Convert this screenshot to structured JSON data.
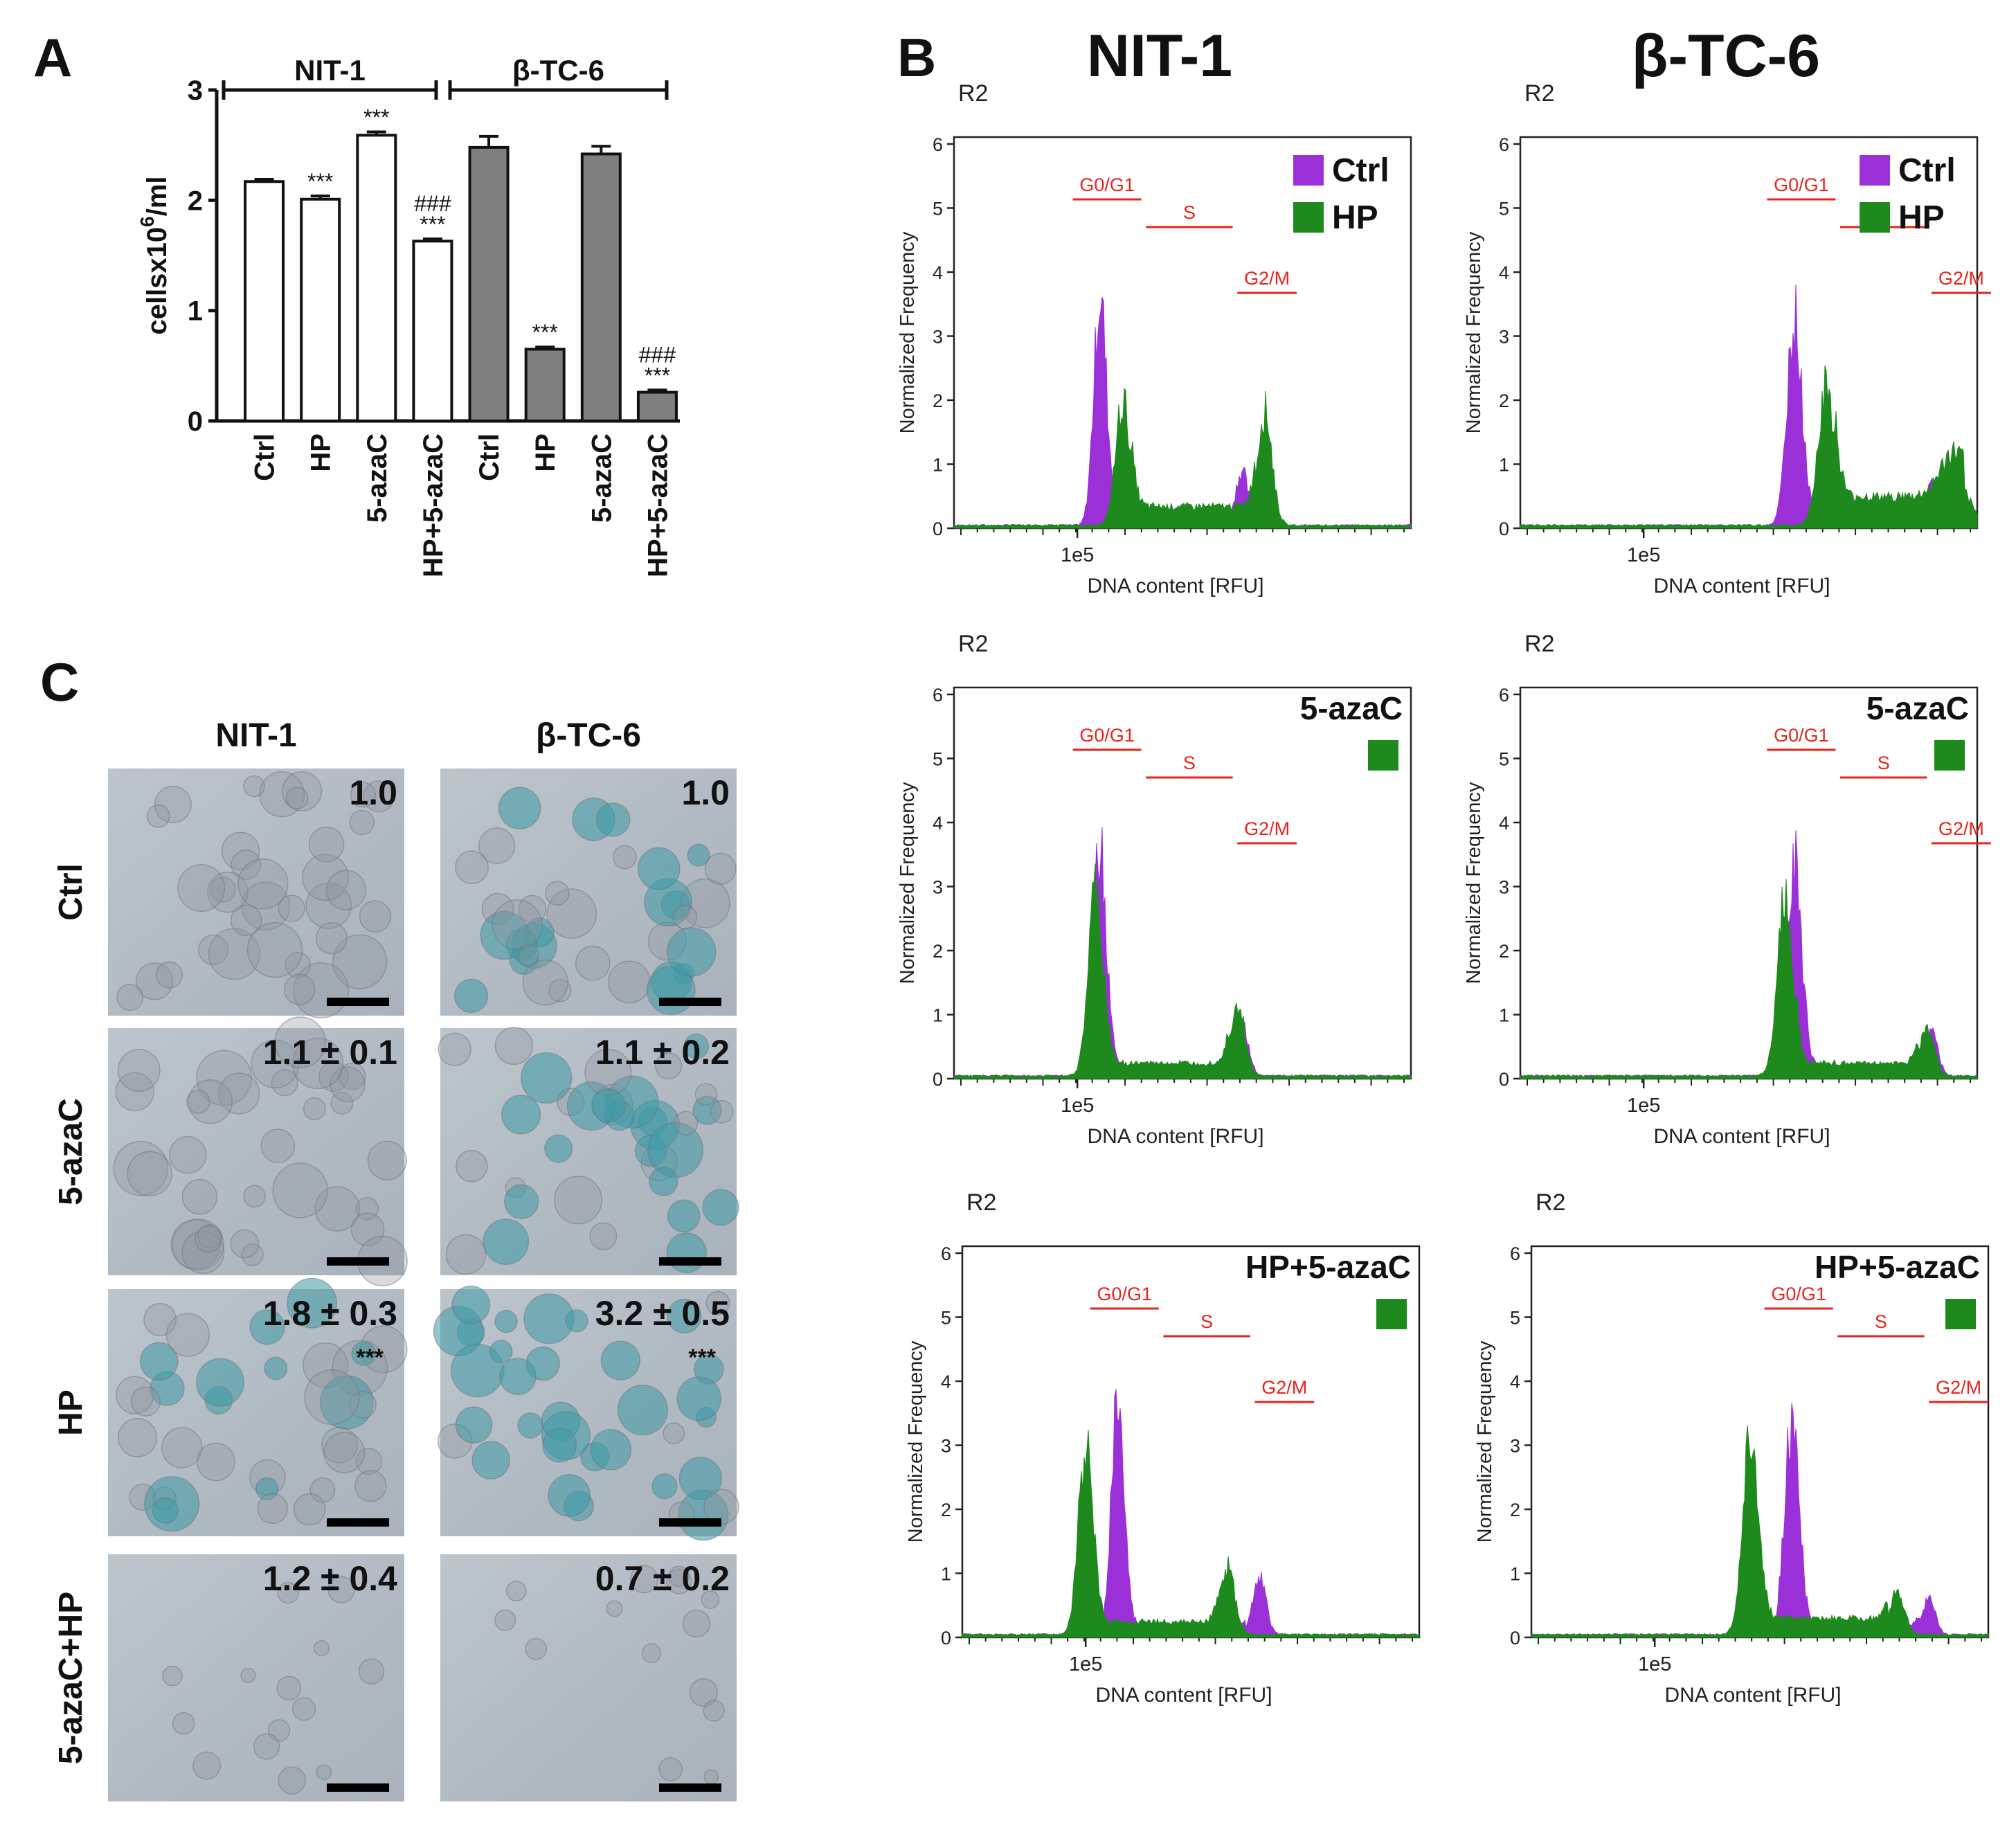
{
  "colors": {
    "ctrl": "#9B30D8",
    "hp": "#1E8A1E",
    "marker": "#E8231A",
    "bar_dark": "#7F7F7F",
    "bar_light": "#FFFFFF",
    "axis": "#111111"
  },
  "panel_labels": {
    "a": "A",
    "b": "B",
    "c": "C"
  },
  "chart_data": [
    {
      "type": "bar",
      "panel": "A",
      "title": "",
      "group_labels": [
        "NIT-1",
        "β-TC-6"
      ],
      "categories": [
        "Ctrl",
        "HP",
        "5-azaC",
        "HP+5-azaC",
        "Ctrl",
        "HP",
        "5-azaC",
        "HP+5-azaC"
      ],
      "values": [
        2.17,
        2.01,
        2.59,
        1.63,
        2.48,
        0.65,
        2.42,
        0.26
      ],
      "errors": [
        0.02,
        0.03,
        0.03,
        0.02,
        0.1,
        0.02,
        0.07,
        0.02
      ],
      "fill": [
        "light",
        "light",
        "light",
        "light",
        "dark",
        "dark",
        "dark",
        "dark"
      ],
      "annotations": [
        "",
        "***",
        "***",
        "###\n***",
        "",
        "***",
        "",
        "###\n***"
      ],
      "ylabel": "cellsx10",
      "ylabel_sup": "6",
      "ylabel_tail": "/ml",
      "ylim": [
        0,
        3
      ],
      "yticks": [
        "0",
        "1",
        "2",
        "3"
      ]
    },
    {
      "type": "histogram-overlay",
      "panel": "B",
      "title": "NIT-1",
      "condition": "Ctrl vs HP",
      "gate": "R2",
      "xlabel": "DNA content [RFU]",
      "ylabel": "Normalized Frequency",
      "xtick": "1e5",
      "yticks": [
        "0",
        "1",
        "2",
        "3",
        "4",
        "5",
        "6"
      ],
      "ylim": [
        0,
        6
      ],
      "phases": [
        "G0/G1",
        "S",
        "G2/M"
      ],
      "legend": [
        "Ctrl",
        "HP"
      ],
      "series": [
        {
          "name": "Ctrl",
          "color": "ctrl",
          "peaks": [
            {
              "x": 0.32,
              "h": 3.6,
              "w": 0.014
            },
            {
              "x": 0.63,
              "h": 0.85,
              "w": 0.014
            }
          ],
          "s_level": 0.15,
          "s_range": [
            0.34,
            0.6
          ]
        },
        {
          "name": "HP",
          "color": "hp",
          "peaks": [
            {
              "x": 0.37,
              "h": 1.95,
              "w": 0.016
            },
            {
              "x": 0.68,
              "h": 1.8,
              "w": 0.016
            }
          ],
          "s_level": 0.3,
          "s_range": [
            0.39,
            0.66
          ]
        }
      ]
    },
    {
      "type": "histogram-overlay",
      "panel": "B",
      "title": "β-TC-6",
      "condition": "Ctrl vs HP",
      "gate": "R2",
      "xlabel": "DNA content [RFU]",
      "ylabel": "Normalized Frequency",
      "xtick": "1e5",
      "yticks": [
        "0",
        "1",
        "2",
        "3",
        "4",
        "5",
        "6"
      ],
      "ylim": [
        0,
        6
      ],
      "phases": [
        "G0/G1",
        "S",
        "G2/M"
      ],
      "legend": [
        "Ctrl",
        "HP"
      ],
      "series": [
        {
          "name": "Ctrl",
          "color": "ctrl",
          "peaks": [
            {
              "x": 0.6,
              "h": 3.3,
              "w": 0.016
            },
            {
              "x": 0.9,
              "h": 0.65,
              "w": 0.014
            }
          ],
          "s_level": 0.15,
          "s_range": [
            0.62,
            0.88
          ]
        },
        {
          "name": "HP",
          "color": "hp",
          "peaks": [
            {
              "x": 0.67,
              "h": 2.2,
              "w": 0.018
            },
            {
              "x": 0.95,
              "h": 0.7,
              "w": 0.03
            }
          ],
          "s_level": 0.45,
          "s_range": [
            0.69,
            0.97
          ]
        }
      ]
    },
    {
      "type": "histogram-overlay",
      "panel": "B",
      "title": "",
      "condition": "5-azaC",
      "gate": "R2",
      "xlabel": "DNA content [RFU]",
      "ylabel": "Normalized Frequency",
      "xtick": "1e5",
      "yticks": [
        "0",
        "1",
        "2",
        "3",
        "4",
        "5",
        "6"
      ],
      "ylim": [
        0,
        6
      ],
      "phases": [
        "G0/G1",
        "S",
        "G2/M"
      ],
      "legend": [],
      "series": [
        {
          "name": "Ctrl",
          "color": "ctrl",
          "peaks": [
            {
              "x": 0.32,
              "h": 3.6,
              "w": 0.014
            },
            {
              "x": 0.63,
              "h": 0.85,
              "w": 0.014
            }
          ],
          "s_level": 0.15,
          "s_range": [
            0.34,
            0.6
          ]
        },
        {
          "name": "5-azaC",
          "color": "hp",
          "peaks": [
            {
              "x": 0.31,
              "h": 2.9,
              "w": 0.016
            },
            {
              "x": 0.62,
              "h": 1.15,
              "w": 0.016
            }
          ],
          "s_level": 0.2,
          "s_range": [
            0.33,
            0.6
          ]
        }
      ]
    },
    {
      "type": "histogram-overlay",
      "panel": "B",
      "title": "",
      "condition": "5-azaC",
      "gate": "R2",
      "xlabel": "DNA content [RFU]",
      "ylabel": "Normalized Frequency",
      "xtick": "1e5",
      "yticks": [
        "0",
        "1",
        "2",
        "3",
        "4",
        "5",
        "6"
      ],
      "ylim": [
        0,
        6
      ],
      "phases": [
        "G0/G1",
        "S",
        "G2/M"
      ],
      "legend": [],
      "series": [
        {
          "name": "Ctrl",
          "color": "ctrl",
          "peaks": [
            {
              "x": 0.6,
              "h": 3.3,
              "w": 0.016
            },
            {
              "x": 0.9,
              "h": 0.65,
              "w": 0.014
            }
          ],
          "s_level": 0.15,
          "s_range": [
            0.62,
            0.88
          ]
        },
        {
          "name": "5-azaC",
          "color": "hp",
          "peaks": [
            {
              "x": 0.58,
              "h": 2.9,
              "w": 0.017
            },
            {
              "x": 0.89,
              "h": 0.75,
              "w": 0.016
            }
          ],
          "s_level": 0.2,
          "s_range": [
            0.6,
            0.87
          ]
        }
      ]
    },
    {
      "type": "histogram-overlay",
      "panel": "B",
      "title": "",
      "condition": "HP+5-azaC",
      "gate": "R2",
      "xlabel": "DNA content [RFU]",
      "ylabel": "Normalized Frequency",
      "xtick": "1e5",
      "yticks": [
        "0",
        "1",
        "2",
        "3",
        "4",
        "5",
        "6"
      ],
      "ylim": [
        0,
        6
      ],
      "phases": [
        "G0/G1",
        "S",
        "G2/M"
      ],
      "legend": [],
      "series": [
        {
          "name": "Ctrl",
          "color": "ctrl",
          "peaks": [
            {
              "x": 0.34,
              "h": 3.6,
              "w": 0.014
            },
            {
              "x": 0.65,
              "h": 0.9,
              "w": 0.014
            }
          ],
          "s_level": 0.15,
          "s_range": [
            0.36,
            0.62
          ]
        },
        {
          "name": "HP+5-azaC",
          "color": "hp",
          "peaks": [
            {
              "x": 0.27,
              "h": 2.9,
              "w": 0.016
            },
            {
              "x": 0.58,
              "h": 1.05,
              "w": 0.016
            }
          ],
          "s_level": 0.2,
          "s_range": [
            0.29,
            0.56
          ]
        }
      ]
    },
    {
      "type": "histogram-overlay",
      "panel": "B",
      "title": "",
      "condition": "HP+5-azaC",
      "gate": "R2",
      "xlabel": "DNA content [RFU]",
      "ylabel": "Normalized Frequency",
      "xtick": "1e5",
      "yticks": [
        "0",
        "1",
        "2",
        "3",
        "4",
        "5",
        "6"
      ],
      "ylim": [
        0,
        6
      ],
      "phases": [
        "G0/G1",
        "S",
        "G2/M"
      ],
      "legend": [],
      "series": [
        {
          "name": "Ctrl",
          "color": "ctrl",
          "peaks": [
            {
              "x": 0.57,
              "h": 3.3,
              "w": 0.016
            },
            {
              "x": 0.87,
              "h": 0.55,
              "w": 0.014
            }
          ],
          "s_level": 0.15,
          "s_range": [
            0.59,
            0.85
          ]
        },
        {
          "name": "HP+5-azaC",
          "color": "hp",
          "peaks": [
            {
              "x": 0.48,
              "h": 3.15,
              "w": 0.017
            },
            {
              "x": 0.8,
              "h": 0.65,
              "w": 0.016
            }
          ],
          "s_level": 0.25,
          "s_range": [
            0.5,
            0.78
          ]
        }
      ]
    }
  ],
  "micrographs": {
    "columns": [
      "NIT-1",
      "β-TC-6"
    ],
    "rows": [
      "Ctrl",
      "5-azaC",
      "HP",
      "5-azaC+HP"
    ],
    "values": [
      [
        "1.0",
        "1.0"
      ],
      [
        "1.1 ± 0.1",
        "1.1 ± 0.2"
      ],
      [
        "1.8 ± 0.3",
        "3.2 ± 0.5"
      ],
      [
        "1.2 ± 0.4",
        "0.7 ± 0.2"
      ]
    ],
    "significance": [
      [
        "",
        ""
      ],
      [
        "",
        ""
      ],
      [
        "***",
        "***"
      ],
      [
        "",
        ""
      ]
    ]
  }
}
